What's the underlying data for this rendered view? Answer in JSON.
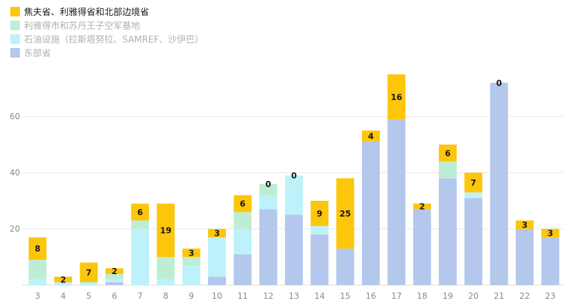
{
  "chart_data": {
    "type": "bar",
    "stacked": true,
    "categories": [
      "3",
      "4",
      "5",
      "6",
      "7",
      "8",
      "9",
      "10",
      "11",
      "12",
      "13",
      "14",
      "15",
      "16",
      "17",
      "18",
      "19",
      "20",
      "21",
      "22",
      "23"
    ],
    "ylim": [
      0,
      80
    ],
    "yticks": [
      20,
      40,
      60
    ],
    "grid": true,
    "legend_position": "top-left",
    "series": [
      {
        "name": "东部省",
        "color": "#b4c7ec",
        "values": [
          0,
          0,
          0,
          1,
          0,
          0,
          0,
          3,
          11,
          27,
          25,
          18,
          13,
          51,
          59,
          27,
          38,
          31,
          72,
          20,
          17
        ]
      },
      {
        "name": "石油设施（拉斯塔努拉、SAMREF、沙伊巴）",
        "color": "#bdf2fa",
        "values": [
          2,
          1,
          1,
          1,
          20,
          2,
          7,
          14,
          9,
          5,
          14,
          3,
          0,
          0,
          0,
          0,
          0,
          2,
          0,
          0,
          0
        ]
      },
      {
        "name": "利雅得市和苏丹王子空军基地",
        "color": "#bdeed4",
        "values": [
          7,
          0,
          0,
          2,
          3,
          8,
          3,
          0,
          6,
          4,
          0,
          0,
          0,
          0,
          0,
          0,
          6,
          0,
          0,
          0,
          0
        ]
      },
      {
        "name": "焦夫省、利雅得省和北部边境省",
        "color": "#fdc60b",
        "values": [
          8,
          2,
          7,
          2,
          6,
          19,
          3,
          3,
          6,
          0,
          0,
          9,
          25,
          4,
          16,
          2,
          6,
          7,
          0,
          3,
          3
        ]
      }
    ],
    "top_labels": [
      "8",
      "2",
      "7",
      "2",
      "6",
      "19",
      "3",
      "3",
      "6",
      "0",
      "0",
      "9",
      "25",
      "4",
      "16",
      "2",
      "6",
      "7",
      "0",
      "3",
      "3"
    ]
  }
}
